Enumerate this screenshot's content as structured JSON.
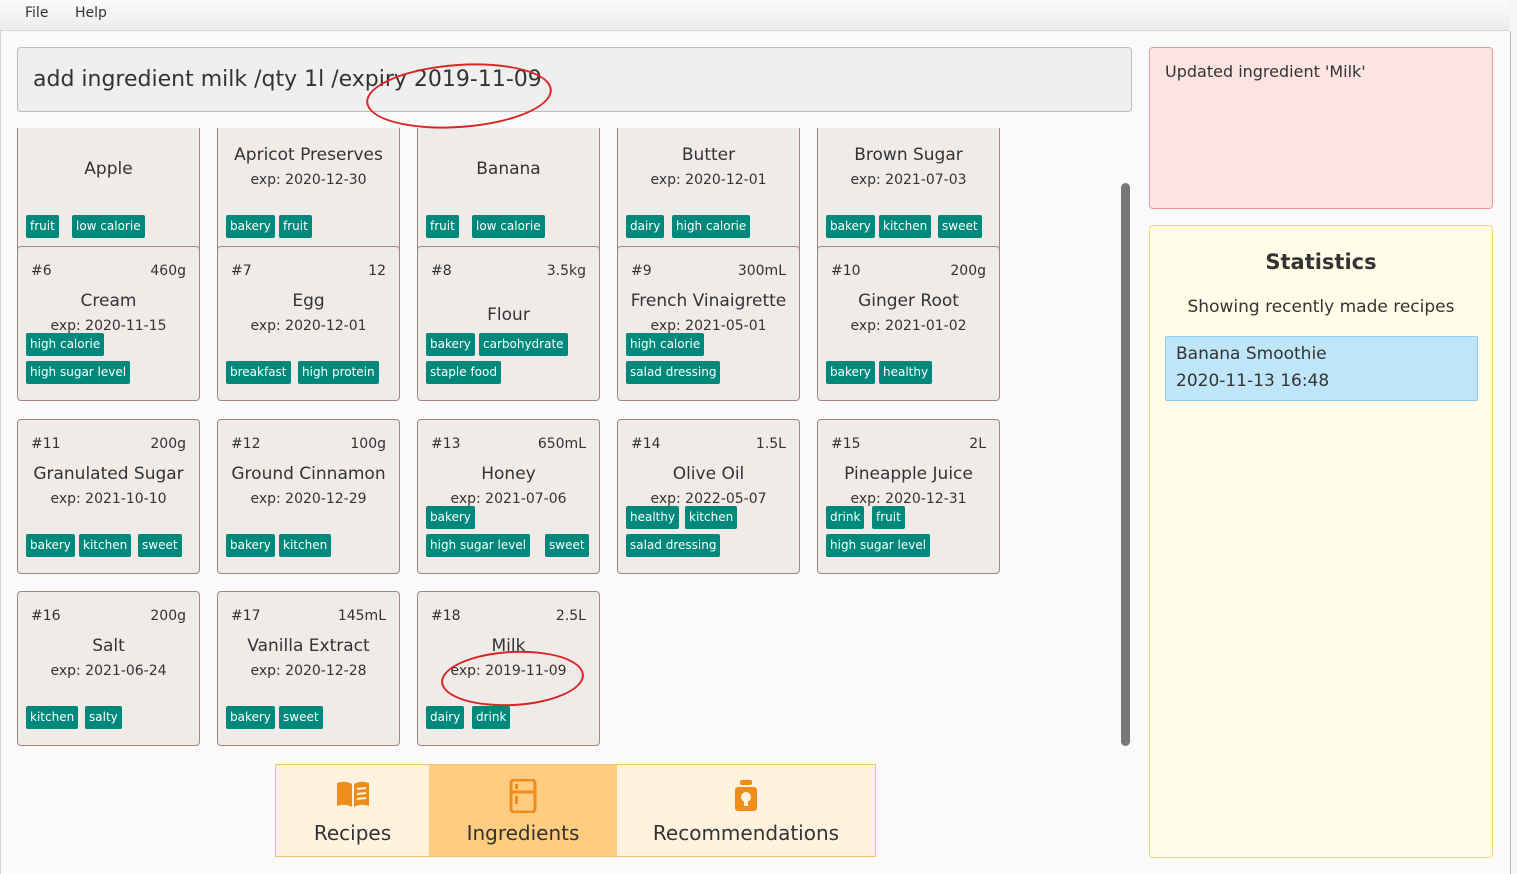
{
  "menu": {
    "file": "File",
    "help": "Help"
  },
  "command": {
    "value": "add ingredient milk /qty 1l /expiry 2019-11-09"
  },
  "result": {
    "message": "Updated ingredient 'Milk'"
  },
  "statistics": {
    "title": "Statistics",
    "subtitle": "Showing recently made recipes",
    "items": [
      {
        "name": "Banana Smoothie",
        "time": "2020-11-13 16:48"
      }
    ]
  },
  "tabs": [
    {
      "label": "Recipes",
      "icon": "book-icon",
      "active": false
    },
    {
      "label": "Ingredients",
      "icon": "fridge-icon",
      "active": true
    },
    {
      "label": "Recommendations",
      "icon": "lightbulb-icon",
      "active": false
    }
  ],
  "colors": {
    "tag": "#00897b",
    "card": "#efebe9",
    "active_tab": "#ffcc80",
    "annotation": "#d92525"
  },
  "ingredients": [
    {
      "index": "",
      "qty": "",
      "name": "Apple",
      "expiry": "",
      "tags": [
        "fruit",
        "low calorie"
      ]
    },
    {
      "index": "",
      "qty": "",
      "name": "Apricot Preserves",
      "expiry": "exp: 2020-12-30",
      "tags": [
        "bakery",
        "fruit"
      ]
    },
    {
      "index": "",
      "qty": "",
      "name": "Banana",
      "expiry": "",
      "tags": [
        "fruit",
        "low calorie"
      ]
    },
    {
      "index": "",
      "qty": "",
      "name": "Butter",
      "expiry": "exp: 2020-12-01",
      "tags": [
        "dairy",
        "high calorie"
      ]
    },
    {
      "index": "",
      "qty": "",
      "name": "Brown Sugar",
      "expiry": "exp: 2021-07-03",
      "tags": [
        "bakery",
        "kitchen",
        "sweet"
      ]
    },
    {
      "index": "#6",
      "qty": "460g",
      "name": "Cream",
      "expiry": "exp: 2020-11-15",
      "tags": [
        "high calorie",
        "high sugar level"
      ]
    },
    {
      "index": "#7",
      "qty": "12",
      "name": "Egg",
      "expiry": "exp: 2020-12-01",
      "tags": [
        "breakfast",
        "high protein"
      ]
    },
    {
      "index": "#8",
      "qty": "3.5kg",
      "name": "Flour",
      "expiry": "",
      "tags": [
        "bakery",
        "carbohydrate",
        "staple food"
      ]
    },
    {
      "index": "#9",
      "qty": "300mL",
      "name": "French Vinaigrette",
      "expiry": "exp: 2021-05-01",
      "tags": [
        "high calorie",
        "salad dressing"
      ]
    },
    {
      "index": "#10",
      "qty": "200g",
      "name": "Ginger Root",
      "expiry": "exp: 2021-01-02",
      "tags": [
        "bakery",
        "healthy"
      ]
    },
    {
      "index": "#11",
      "qty": "200g",
      "name": "Granulated Sugar",
      "expiry": "exp: 2021-10-10",
      "tags": [
        "bakery",
        "kitchen",
        "sweet"
      ]
    },
    {
      "index": "#12",
      "qty": "100g",
      "name": "Ground Cinnamon",
      "expiry": "exp: 2020-12-29",
      "tags": [
        "bakery",
        "kitchen"
      ]
    },
    {
      "index": "#13",
      "qty": "650mL",
      "name": "Honey",
      "expiry": "exp: 2021-07-06",
      "tags": [
        "bakery",
        "high sugar level",
        "sweet"
      ]
    },
    {
      "index": "#14",
      "qty": "1.5L",
      "name": "Olive Oil",
      "expiry": "exp: 2022-05-07",
      "tags": [
        "healthy",
        "kitchen",
        "salad dressing"
      ]
    },
    {
      "index": "#15",
      "qty": "2L",
      "name": "Pineapple Juice",
      "expiry": "exp: 2020-12-31",
      "tags": [
        "drink",
        "fruit",
        "high sugar level"
      ]
    },
    {
      "index": "#16",
      "qty": "200g",
      "name": "Salt",
      "expiry": "exp: 2021-06-24",
      "tags": [
        "kitchen",
        "salty"
      ]
    },
    {
      "index": "#17",
      "qty": "145mL",
      "name": "Vanilla Extract",
      "expiry": "exp: 2020-12-28",
      "tags": [
        "bakery",
        "sweet"
      ]
    },
    {
      "index": "#18",
      "qty": "2.5L",
      "name": "Milk",
      "expiry": "exp: 2019-11-09",
      "tags": [
        "dairy",
        "drink"
      ]
    }
  ]
}
